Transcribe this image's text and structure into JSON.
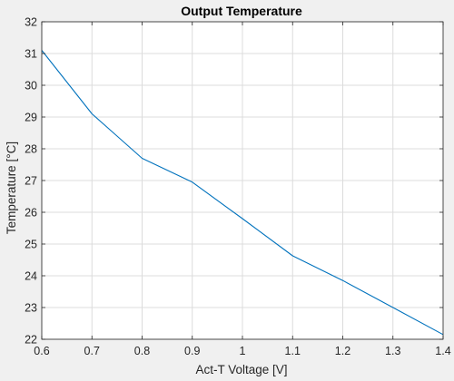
{
  "chart_data": {
    "type": "line",
    "title": "Output Temperature",
    "xlabel": "Act-T Voltage [V]",
    "ylabel": "Temperature [°C]",
    "xlim": [
      0.6,
      1.4
    ],
    "ylim": [
      22,
      32
    ],
    "x_ticks": [
      0.6,
      0.7,
      0.8,
      0.9,
      1.0,
      1.1,
      1.2,
      1.3,
      1.4
    ],
    "x_tick_labels": [
      "0.6",
      "0.7",
      "0.8",
      "0.9",
      "1",
      "1.1",
      "1.2",
      "1.3",
      "1.4"
    ],
    "y_ticks": [
      22,
      23,
      24,
      25,
      26,
      27,
      28,
      29,
      30,
      31,
      32
    ],
    "y_tick_labels": [
      "22",
      "23",
      "24",
      "25",
      "26",
      "27",
      "28",
      "29",
      "30",
      "31",
      "32"
    ],
    "grid": true,
    "series": [
      {
        "color": "#0072bd",
        "x": [
          0.6,
          0.7,
          0.8,
          0.9,
          1.0,
          1.1,
          1.2,
          1.3,
          1.4
        ],
        "y": [
          31.1,
          29.1,
          27.7,
          26.95,
          25.8,
          24.63,
          23.85,
          23.0,
          22.15
        ]
      }
    ]
  },
  "colors": {
    "figure_background": "#f0f0f0",
    "axes_background": "#ffffff",
    "grid": "#dcdcdc",
    "axis_line": "#262626"
  }
}
